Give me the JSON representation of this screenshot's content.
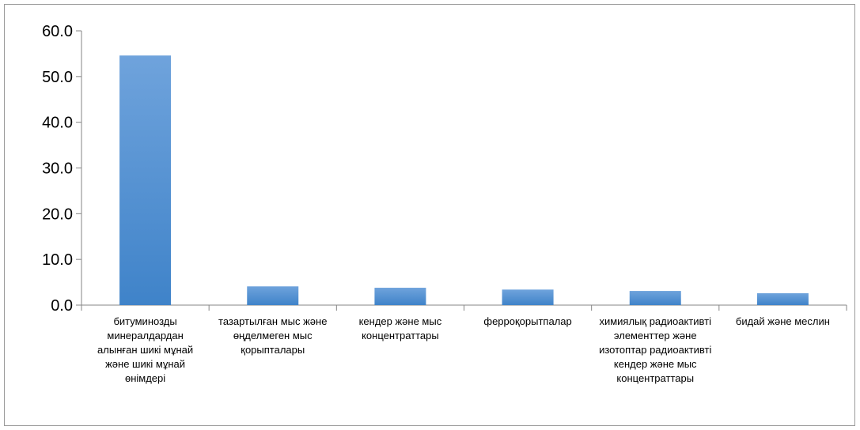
{
  "chart_data": {
    "type": "bar",
    "title": "",
    "xlabel": "",
    "ylabel": "",
    "categories": [
      "битуминозды минералдардан алынған шикі мұнай және шикі мұнай өнімдері",
      "тазартылған мыс және өңделмеген мыс қорыпталары",
      "кендер және мыс концентраттары",
      "ферроқорытпалар",
      "химиялық радиоактивті элементтер және изотоптар радиоактивті кендер және мыс концентраттары",
      "бидай және меслин"
    ],
    "values": [
      54.6,
      4.1,
      3.8,
      3.4,
      3.1,
      2.6
    ],
    "ylim": [
      0,
      60
    ],
    "yticks": [
      "0.0",
      "10.0",
      "20.0",
      "30.0",
      "40.0",
      "50.0",
      "60.0"
    ],
    "grid": false,
    "legend": "none",
    "colors": {
      "bar_top": "#6fa3dc",
      "bar_bottom": "#3f83c9",
      "axis": "#868686"
    }
  }
}
